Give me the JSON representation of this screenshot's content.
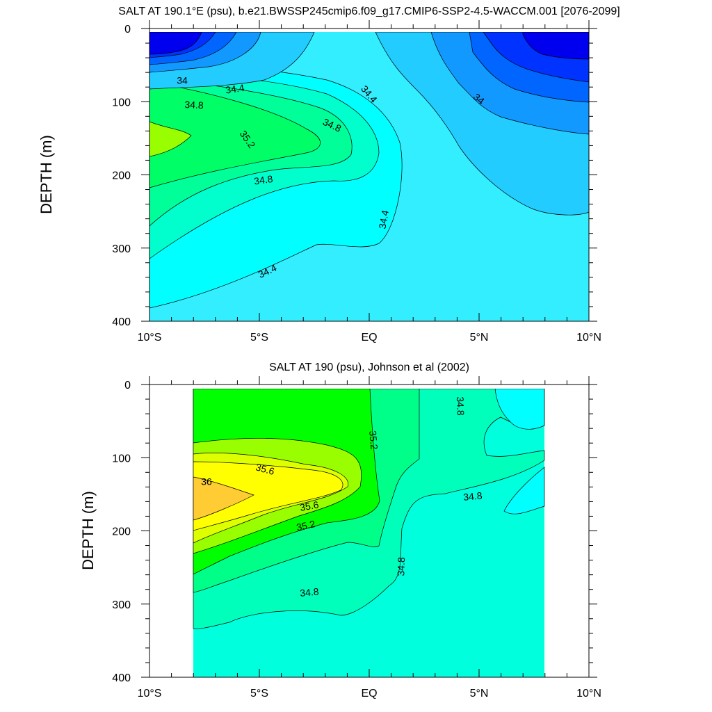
{
  "chart_data": [
    {
      "type": "contour",
      "title": "SALT AT 190.1°E (psu), b.e21.BWSSP245cmip6.f09_g17.CMIP6-SSP2-4.5-WACCM.001 [2076-2099]",
      "ylabel": "DEPTH (m)",
      "xlabel": "",
      "x_ticks": [
        "10°S",
        "5°S",
        "EQ",
        "5°N",
        "10°N"
      ],
      "x_tick_values": [
        -10,
        -5,
        0,
        5,
        10
      ],
      "y_ticks": [
        "0",
        "100",
        "200",
        "300",
        "400"
      ],
      "y_tick_values": [
        0,
        100,
        200,
        300,
        400
      ],
      "xlim": [
        -10,
        10
      ],
      "ylim": [
        400,
        0
      ],
      "data_extent": {
        "lat": [
          -10,
          10
        ],
        "depth": [
          5,
          400
        ]
      },
      "levels": [
        33.2,
        33.4,
        33.6,
        33.8,
        34.0,
        34.2,
        34.4,
        34.6,
        34.8,
        35.0,
        35.2,
        35.4
      ],
      "contour_labels": [
        "34",
        "34.4",
        "34.8",
        "34.4",
        "34",
        "34.8",
        "35.2",
        "34.8",
        "34.4",
        "34.4"
      ],
      "background_color": "#33eeff",
      "regions": [
        {
          "value": 34.6,
          "color": "#00ffff",
          "lat": [
            -10,
            2
          ],
          "depth": [
            95,
            400
          ]
        },
        {
          "value": 34.8,
          "color": "#00ffcc",
          "lat": [
            -10,
            -1
          ],
          "depth": [
            105,
            270
          ]
        },
        {
          "value": 35.0,
          "color": "#00ff99",
          "lat": [
            -10,
            -3
          ],
          "depth": [
            110,
            240
          ]
        },
        {
          "value": 35.2,
          "color": "#00ff66",
          "lat": [
            -10,
            -2.5
          ],
          "depth": [
            115,
            205
          ]
        },
        {
          "value": 35.4,
          "color": "#99ff00",
          "lat": [
            -10,
            -8
          ],
          "depth": [
            130,
            180
          ]
        },
        {
          "value": 34.2,
          "color": "#22ccff",
          "lat": [
            -10,
            -2.5
          ],
          "depth": [
            5,
            90
          ]
        },
        {
          "value": 34.0,
          "color": "#1199ff",
          "lat": [
            -10,
            -5
          ],
          "depth": [
            5,
            60
          ]
        },
        {
          "value": 33.8,
          "color": "#0066ff",
          "lat": [
            -10,
            -6.5
          ],
          "depth": [
            5,
            45
          ]
        },
        {
          "value": 33.6,
          "color": "#0033ff",
          "lat": [
            -10,
            -8
          ],
          "depth": [
            5,
            35
          ]
        },
        {
          "value": 33.4,
          "color": "#0000ee",
          "lat": [
            -10,
            -8.5
          ],
          "depth": [
            5,
            30
          ]
        },
        {
          "value": 34.2,
          "color": "#22ccff",
          "lat": [
            0,
            10
          ],
          "depth": [
            5,
            240
          ]
        },
        {
          "value": 34.0,
          "color": "#1199ff",
          "lat": [
            3,
            10
          ],
          "depth": [
            5,
            145
          ]
        },
        {
          "value": 33.8,
          "color": "#0066ff",
          "lat": [
            5,
            10
          ],
          "depth": [
            5,
            100
          ]
        },
        {
          "value": 33.6,
          "color": "#0033ff",
          "lat": [
            5.5,
            10
          ],
          "depth": [
            5,
            75
          ]
        },
        {
          "value": 33.4,
          "color": "#0000ee",
          "lat": [
            7,
            10
          ],
          "depth": [
            5,
            38
          ]
        }
      ]
    },
    {
      "type": "contour",
      "title": "SALT AT 190 (psu), Johnson et al (2002)",
      "ylabel": "DEPTH (m)",
      "xlabel": "",
      "x_ticks": [
        "10°S",
        "5°S",
        "EQ",
        "5°N",
        "10°N"
      ],
      "x_tick_values": [
        -10,
        -5,
        0,
        5,
        10
      ],
      "y_ticks": [
        "0",
        "100",
        "200",
        "300",
        "400"
      ],
      "y_tick_values": [
        0,
        100,
        200,
        300,
        400
      ],
      "xlim": [
        -10,
        10
      ],
      "ylim": [
        400,
        0
      ],
      "data_extent": {
        "lat": [
          -8,
          8
        ],
        "depth": [
          5,
          400
        ]
      },
      "levels": [
        34.6,
        34.8,
        35.0,
        35.2,
        35.4,
        35.6,
        35.8,
        36.0
      ],
      "contour_labels": [
        "34.8",
        "35.2",
        "35.6",
        "36",
        "35.6",
        "34.8",
        "35.2",
        "34.8",
        "34.8"
      ],
      "background_color": "#00ffdd",
      "regions": [
        {
          "value": 34.8,
          "color": "#00ffbb",
          "lat": [
            -8,
            2.5
          ],
          "depth": [
            5,
            335
          ]
        },
        {
          "value": 35.0,
          "color": "#00ff88",
          "lat": [
            -8,
            0.3
          ],
          "depth": [
            5,
            285
          ]
        },
        {
          "value": 35.2,
          "color": "#00ff00",
          "lat": [
            -8,
            0.3
          ],
          "depth": [
            5,
            260
          ]
        },
        {
          "value": 35.4,
          "color": "#99ff00",
          "lat": [
            -8,
            -0.5
          ],
          "depth": [
            80,
            230
          ]
        },
        {
          "value": 35.6,
          "color": "#ddff00",
          "lat": [
            -8,
            -1.5
          ],
          "depth": [
            95,
            200
          ]
        },
        {
          "value": 35.8,
          "color": "#ffff00",
          "lat": [
            -8,
            -1
          ],
          "depth": [
            105,
            185
          ]
        },
        {
          "value": 36.0,
          "color": "#ffcc33",
          "lat": [
            -8,
            -5
          ],
          "depth": [
            130,
            175
          ]
        },
        {
          "value": 34.6,
          "color": "#00ffff",
          "lat": [
            5.5,
            8
          ],
          "depth": [
            5,
            60
          ]
        },
        {
          "value": 34.6,
          "color": "#00ffff",
          "lat": [
            6,
            8
          ],
          "depth": [
            110,
            185
          ]
        }
      ]
    }
  ]
}
